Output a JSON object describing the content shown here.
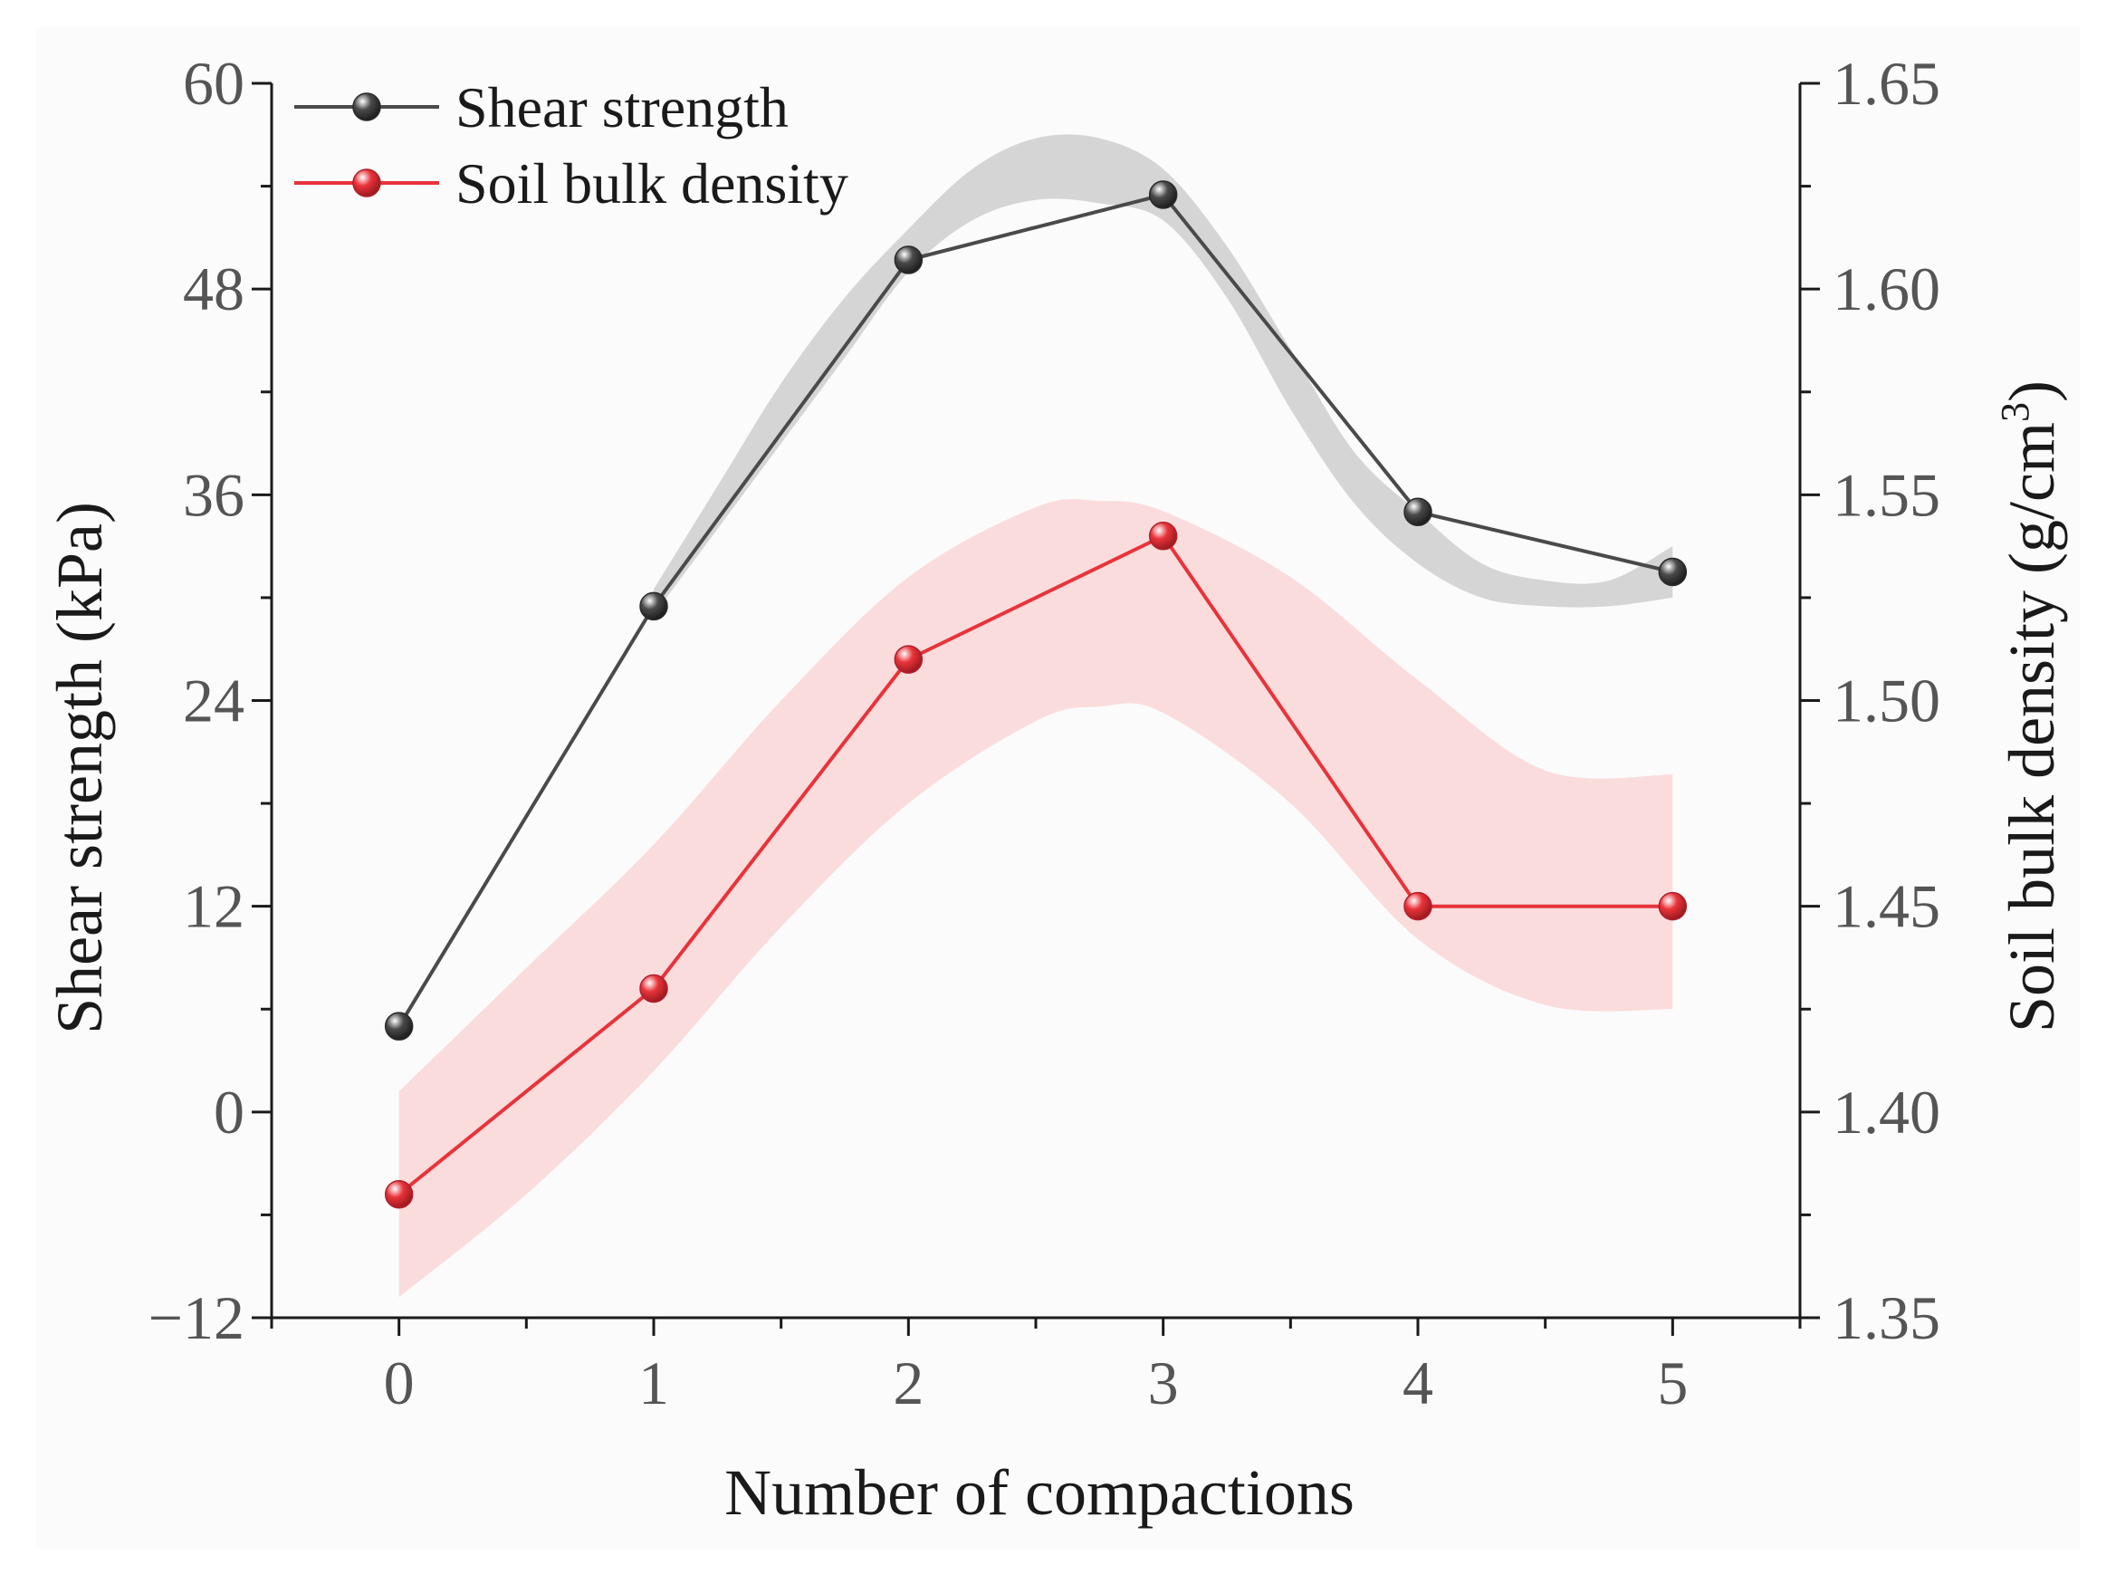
{
  "chart_data": {
    "type": "line",
    "title": "",
    "xlabel": "Number of compactions",
    "ylabel": "Shear strength (kPa)",
    "y2label_main": "Soil bulk density (g/cm",
    "y2label_sup": "3",
    "y2label_close": ")",
    "x": [
      0,
      1,
      2,
      3,
      4,
      5
    ],
    "xlim": [
      -0.5,
      5.5
    ],
    "ylim": [
      -12,
      60
    ],
    "y2lim": [
      1.35,
      1.65
    ],
    "x_ticks": [
      "0",
      "1",
      "2",
      "3",
      "4",
      "5"
    ],
    "y_ticks": [
      "−12",
      "0",
      "12",
      "24",
      "36",
      "48",
      "60"
    ],
    "y_tick_values": [
      -12,
      0,
      12,
      24,
      36,
      48,
      60
    ],
    "y2_ticks": [
      "1.35",
      "1.40",
      "1.45",
      "1.50",
      "1.55",
      "1.60",
      "1.65"
    ],
    "y2_tick_values": [
      1.35,
      1.4,
      1.45,
      1.5,
      1.55,
      1.6,
      1.65
    ],
    "grid": false,
    "legend_position": "top-left",
    "series": [
      {
        "name": "Shear strength",
        "axis": "left",
        "color": "#4a4a4a",
        "band_color": "#c8c8c8",
        "values": [
          5,
          29.5,
          49.7,
          53.5,
          35,
          31.5
        ],
        "band": {
          "x": [
            1,
            1.25,
            1.5,
            1.75,
            2,
            2.25,
            2.5,
            2.75,
            3,
            3.25,
            3.5,
            3.75,
            4,
            4.25,
            4.5,
            4.75,
            5
          ],
          "upper": [
            30.5,
            36.5,
            42.5,
            47.5,
            51.5,
            55.0,
            56.8,
            56.8,
            55.0,
            50.5,
            44.5,
            38.5,
            35.0,
            32.0,
            31.0,
            31.0,
            33.0
          ],
          "lower": [
            29.0,
            34.0,
            39.0,
            44.0,
            49.0,
            52.0,
            53.2,
            53.0,
            52.0,
            47.5,
            41.0,
            35.5,
            32.0,
            30.0,
            29.5,
            29.5,
            30.0
          ]
        }
      },
      {
        "name": "Soil bulk density",
        "axis": "right",
        "color": "#e8333a",
        "band_color": "#fbd4d6",
        "values": [
          1.38,
          1.43,
          1.51,
          1.54,
          1.45,
          1.45
        ],
        "band": {
          "x": [
            0,
            0.5,
            1,
            1.5,
            2,
            2.5,
            2.75,
            3,
            3.5,
            4,
            4.5,
            5
          ],
          "upper": [
            1.405,
            1.435,
            1.465,
            1.5,
            1.53,
            1.547,
            1.5485,
            1.546,
            1.53,
            1.505,
            1.483,
            1.482
          ],
          "lower": [
            1.355,
            1.38,
            1.41,
            1.445,
            1.475,
            1.495,
            1.4985,
            1.497,
            1.475,
            1.442,
            1.426,
            1.425
          ]
        }
      }
    ]
  }
}
